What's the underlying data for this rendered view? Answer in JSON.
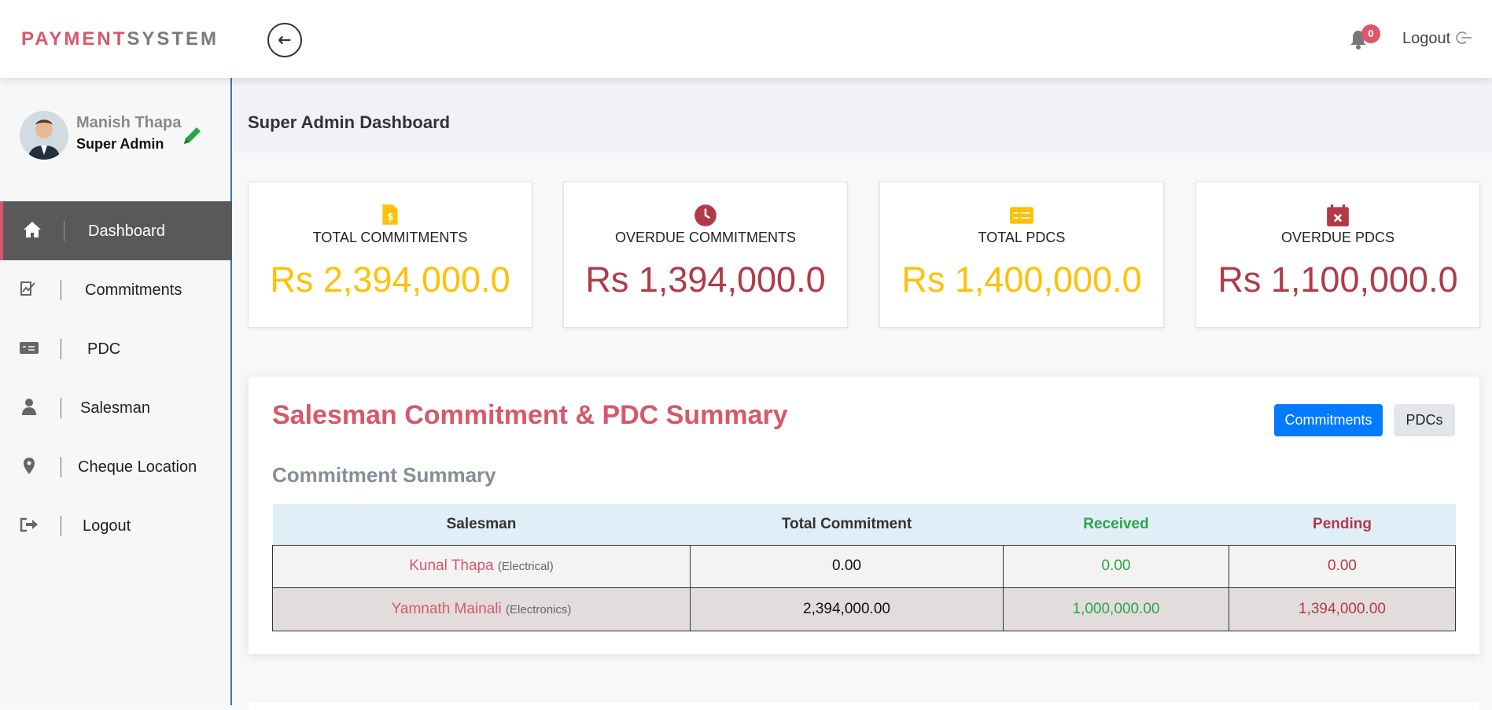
{
  "header": {
    "logo_primary": "PAYMENT",
    "logo_secondary": "SYSTEM",
    "notification_count": "0",
    "logout": "Logout"
  },
  "sidebar": {
    "user_name": "Manish Thapa",
    "user_role": "Super Admin",
    "nav": [
      "Dashboard",
      "Commitments",
      "PDC",
      "Salesman",
      "Cheque Location",
      "Logout"
    ]
  },
  "page_title": "Super Admin Dashboard",
  "cards": [
    {
      "label": "TOTAL COMMITMENTS",
      "value": "Rs 2,394,000.0"
    },
    {
      "label": "OVERDUE COMMITMENTS",
      "value": "Rs 1,394,000.0"
    },
    {
      "label": "TOTAL PDCS",
      "value": "Rs 1,400,000.0"
    },
    {
      "label": "OVERDUE PDCS",
      "value": "Rs 1,100,000.0"
    }
  ],
  "summary": {
    "title": "Salesman Commitment & PDC Summary",
    "buttons": [
      "Commitments",
      "PDCs"
    ],
    "subtitle": "Commitment Summary",
    "table": {
      "columns": [
        "Salesman",
        "Total Commitment",
        "Received",
        "Pending"
      ],
      "rows": [
        [
          "Kunal Thapa",
          "(Electrical)",
          "0.00",
          "0.00",
          "0.00"
        ],
        [
          "Yamnath Mainali",
          "(Electronics)",
          "2,394,000.00",
          "1,000,000.00",
          "1,394,000.00"
        ]
      ]
    }
  }
}
